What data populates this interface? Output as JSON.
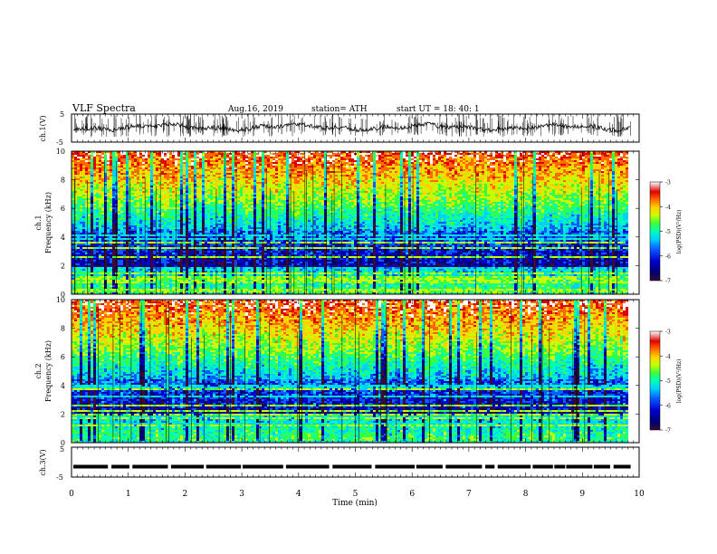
{
  "header": {
    "title": "VLF  Spectra",
    "date": "Aug.16, 2019",
    "station": "station= ATH",
    "start_ut": "start  UT  =    18: 40: 1"
  },
  "chart_data": [
    {
      "type": "line",
      "name": "ch1-waveform",
      "ylabel": "ch.1(V)",
      "ylim": [
        -5,
        5
      ],
      "yticks": [
        "5",
        "-5"
      ],
      "xlim": [
        0,
        10
      ],
      "baseline": 0.3,
      "line_color": "#000000"
    },
    {
      "type": "heatmap",
      "name": "ch1-spectrogram",
      "ylabel": "ch.1\nFrequency  (kHz)",
      "ylabel_line1": "ch.1",
      "ylabel_line2": "Frequency  (kHz)",
      "ylim": [
        0,
        10
      ],
      "yticks": [
        "0",
        "2",
        "4",
        "6",
        "8",
        "10"
      ],
      "xlim": [
        0,
        9.8
      ],
      "colorbar": {
        "label": "log(PSD)(V²/Hz)",
        "ticks": [
          "-3",
          "-4",
          "-5",
          "-6",
          "-7"
        ],
        "range": [
          -7,
          -3
        ]
      }
    },
    {
      "type": "heatmap",
      "name": "ch2-spectrogram",
      "ylabel": "ch.2\nFrequency  (kHz)",
      "ylabel_line1": "ch.2",
      "ylabel_line2": "Frequency  (kHz)",
      "ylim": [
        0,
        10
      ],
      "yticks": [
        "0",
        "2",
        "4",
        "6",
        "8",
        "10"
      ],
      "xlim": [
        0,
        9.8
      ],
      "colorbar": {
        "label": "log(PSD)(V²/Hz)",
        "ticks": [
          "-3",
          "-4",
          "-5",
          "-6",
          "-7"
        ],
        "range": [
          -7,
          -3
        ]
      }
    },
    {
      "type": "line",
      "name": "ch3-signal",
      "ylabel": "ch.3(V)",
      "ylim": [
        -5,
        5
      ],
      "yticks": [
        "5",
        "-5"
      ],
      "xlim": [
        0,
        10
      ],
      "level": -1.5,
      "line_color": "#000000"
    }
  ],
  "x_axis": {
    "label": "Time  (min)",
    "ticks": [
      "0",
      "1",
      "2",
      "3",
      "4",
      "5",
      "6",
      "7",
      "8",
      "9",
      "10"
    ],
    "range": [
      0,
      10
    ]
  },
  "colors": {
    "colormap": [
      "#3a0a3a",
      "#00006e",
      "#0000d0",
      "#0a5cff",
      "#00d2ff",
      "#00ffb4",
      "#3cff3c",
      "#c8ff00",
      "#ffd200",
      "#ff6a00",
      "#e00000",
      "#ffffff"
    ]
  }
}
